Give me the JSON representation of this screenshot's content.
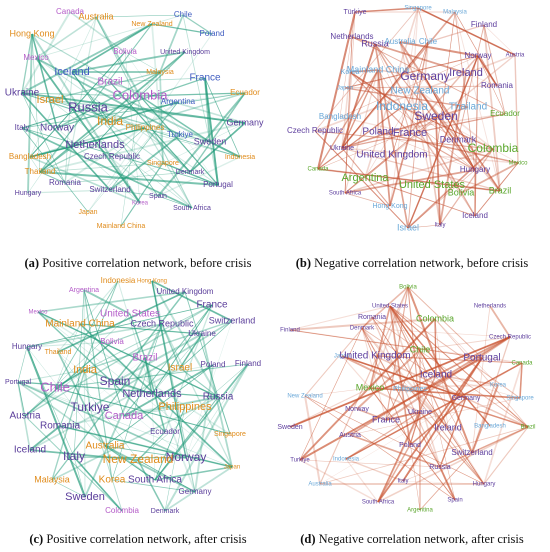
{
  "panels": [
    {
      "caption_label": "(a)",
      "caption": "Positive correlation network, before crisis",
      "nodes": [
        "Canada",
        "Australia",
        "New Zealand",
        "Chile",
        "Hong Kong",
        "Bolivia",
        "Poland",
        "Mexico",
        "United Kingdom",
        "Iceland",
        "Malaysia",
        "Brazil",
        "France",
        "Ukraine",
        "Israel",
        "Russia",
        "Colombia",
        "Argentina",
        "Ecuador",
        "India",
        "Philippines",
        "Italy",
        "Norway",
        "Turkiye",
        "Germany",
        "Netherlands",
        "Czech Republic",
        "Sweden",
        "Bangladesh",
        "Thailand",
        "Singapore",
        "Indonesia",
        "Romania",
        "Denmark",
        "Portugal",
        "Hungary",
        "Switzerland",
        "Korea",
        "Spain",
        "Japan",
        "South Africa",
        "Mainland China"
      ]
    },
    {
      "caption_label": "(b)",
      "caption": "Negative correlation network, before crisis",
      "nodes": [
        "Türkiye",
        "Singapore",
        "Malaysia",
        "Finland",
        "Netherlands",
        "Russia",
        "Australia",
        "Chile",
        "Norway",
        "Austria",
        "Korea",
        "Mainland China",
        "Germany",
        "Ireland",
        "Romania",
        "Japan",
        "New Zealand",
        "Indonesia",
        "Thailand",
        "Bangladesh",
        "Sweden",
        "Ecuador",
        "Czech Republic",
        "Poland",
        "France",
        "Denmark",
        "Colombia",
        "Ukraine",
        "United Kingdom",
        "Mexico",
        "Canada",
        "Argentina",
        "Hungary",
        "United States",
        "South Africa",
        "Bolivia",
        "Brazil",
        "Hong Kong",
        "Iceland",
        "Israel",
        "Italy"
      ]
    },
    {
      "caption_label": "(c)",
      "caption": "Positive correlation network, after crisis",
      "nodes": [
        "Indonesia",
        "Hong Kong",
        "Argentina",
        "United Kingdom",
        "France",
        "Mexico",
        "United States",
        "Czech Republic",
        "Switzerland",
        "Mainland China",
        "Ukraine",
        "Bolivia",
        "Hungary",
        "Thailand",
        "Brazil",
        "Poland",
        "Finland",
        "India",
        "Israel",
        "Portugal",
        "Spain",
        "Chile",
        "Netherlands",
        "Russia",
        "Philippines",
        "Turkiye",
        "Canada",
        "Austria",
        "Romania",
        "Singapore",
        "Ecuador",
        "Iceland",
        "Italy",
        "Australia",
        "Norway",
        "New Zealand",
        "Japan",
        "Malaysia",
        "Korea",
        "South Africa",
        "Germany",
        "Sweden",
        "Colombia",
        "Denmark"
      ]
    },
    {
      "caption_label": "(d)",
      "caption": "Negative correlation network, after crisis",
      "nodes": [
        "Bolivia",
        "United States",
        "Netherlands",
        "Romania",
        "Colombia",
        "Denmark",
        "Czech Republic",
        "Finland",
        "Japan",
        "United Kingdom",
        "Chile",
        "Portugal",
        "Canada",
        "Mexico",
        "Iceland",
        "Philippines",
        "Korea",
        "New Zealand",
        "Germany",
        "Singapore",
        "Norway",
        "Ukraine",
        "France",
        "Sweden",
        "Bangladesh",
        "Brazil",
        "Ireland",
        "Austria",
        "Poland",
        "Switzerland",
        "Turkiye",
        "Indonesia",
        "Russia",
        "Hungary",
        "Australia",
        "Italy",
        "South Africa",
        "Spain",
        "Argentina"
      ]
    }
  ]
}
